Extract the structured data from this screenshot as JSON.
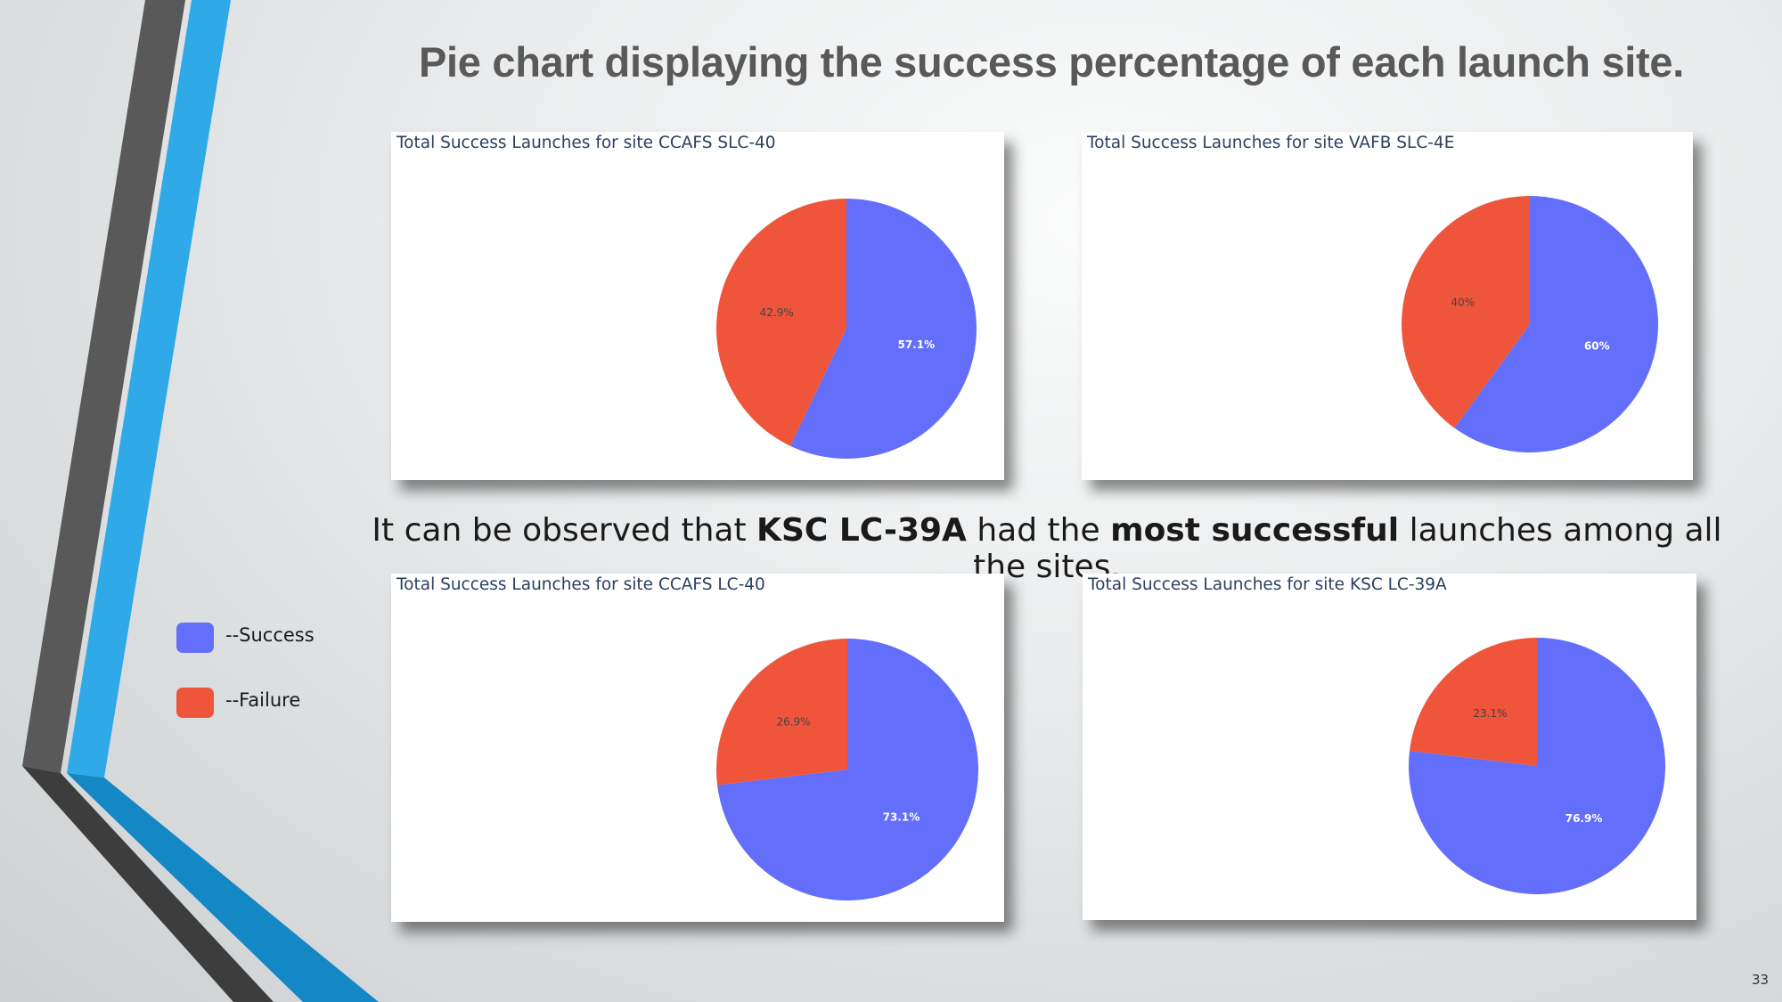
{
  "slide": {
    "title": "Pie chart displaying the success percentage of each launch site.",
    "observation": {
      "part1": "It can be observed that ",
      "site": "KSC LC-39A",
      "part2": " had the ",
      "emphasis": "most successful",
      "part3": " launches among all the sites."
    },
    "page_number": "33"
  },
  "legend": [
    {
      "label": "--Success",
      "color": "#636efa"
    },
    {
      "label": "--Failure",
      "color": "#ef553b"
    }
  ],
  "colors": {
    "success": "#636efa",
    "failure": "#ef553b",
    "accent_blue": "#2fa9e8",
    "dark_gray": "#555555"
  },
  "chart_data": [
    {
      "type": "pie",
      "title": "Total Success Launches for site CCAFS SLC-40",
      "slices": [
        {
          "label": "57.1%",
          "value": 57.1,
          "color": "#636efa"
        },
        {
          "label": "42.9%",
          "value": 42.9,
          "color": "#ef553b"
        }
      ]
    },
    {
      "type": "pie",
      "title": "Total Success Launches for site VAFB SLC-4E",
      "slices": [
        {
          "label": "60%",
          "value": 60,
          "color": "#636efa"
        },
        {
          "label": "40%",
          "value": 40,
          "color": "#ef553b"
        }
      ]
    },
    {
      "type": "pie",
      "title": "Total Success Launches for site CCAFS LC-40",
      "slices": [
        {
          "label": "73.1%",
          "value": 73.1,
          "color": "#636efa"
        },
        {
          "label": "26.9%",
          "value": 26.9,
          "color": "#ef553b"
        }
      ]
    },
    {
      "type": "pie",
      "title": "Total Success Launches for site KSC LC-39A",
      "slices": [
        {
          "label": "76.9%",
          "value": 76.9,
          "color": "#636efa"
        },
        {
          "label": "23.1%",
          "value": 23.1,
          "color": "#ef553b"
        }
      ]
    }
  ]
}
